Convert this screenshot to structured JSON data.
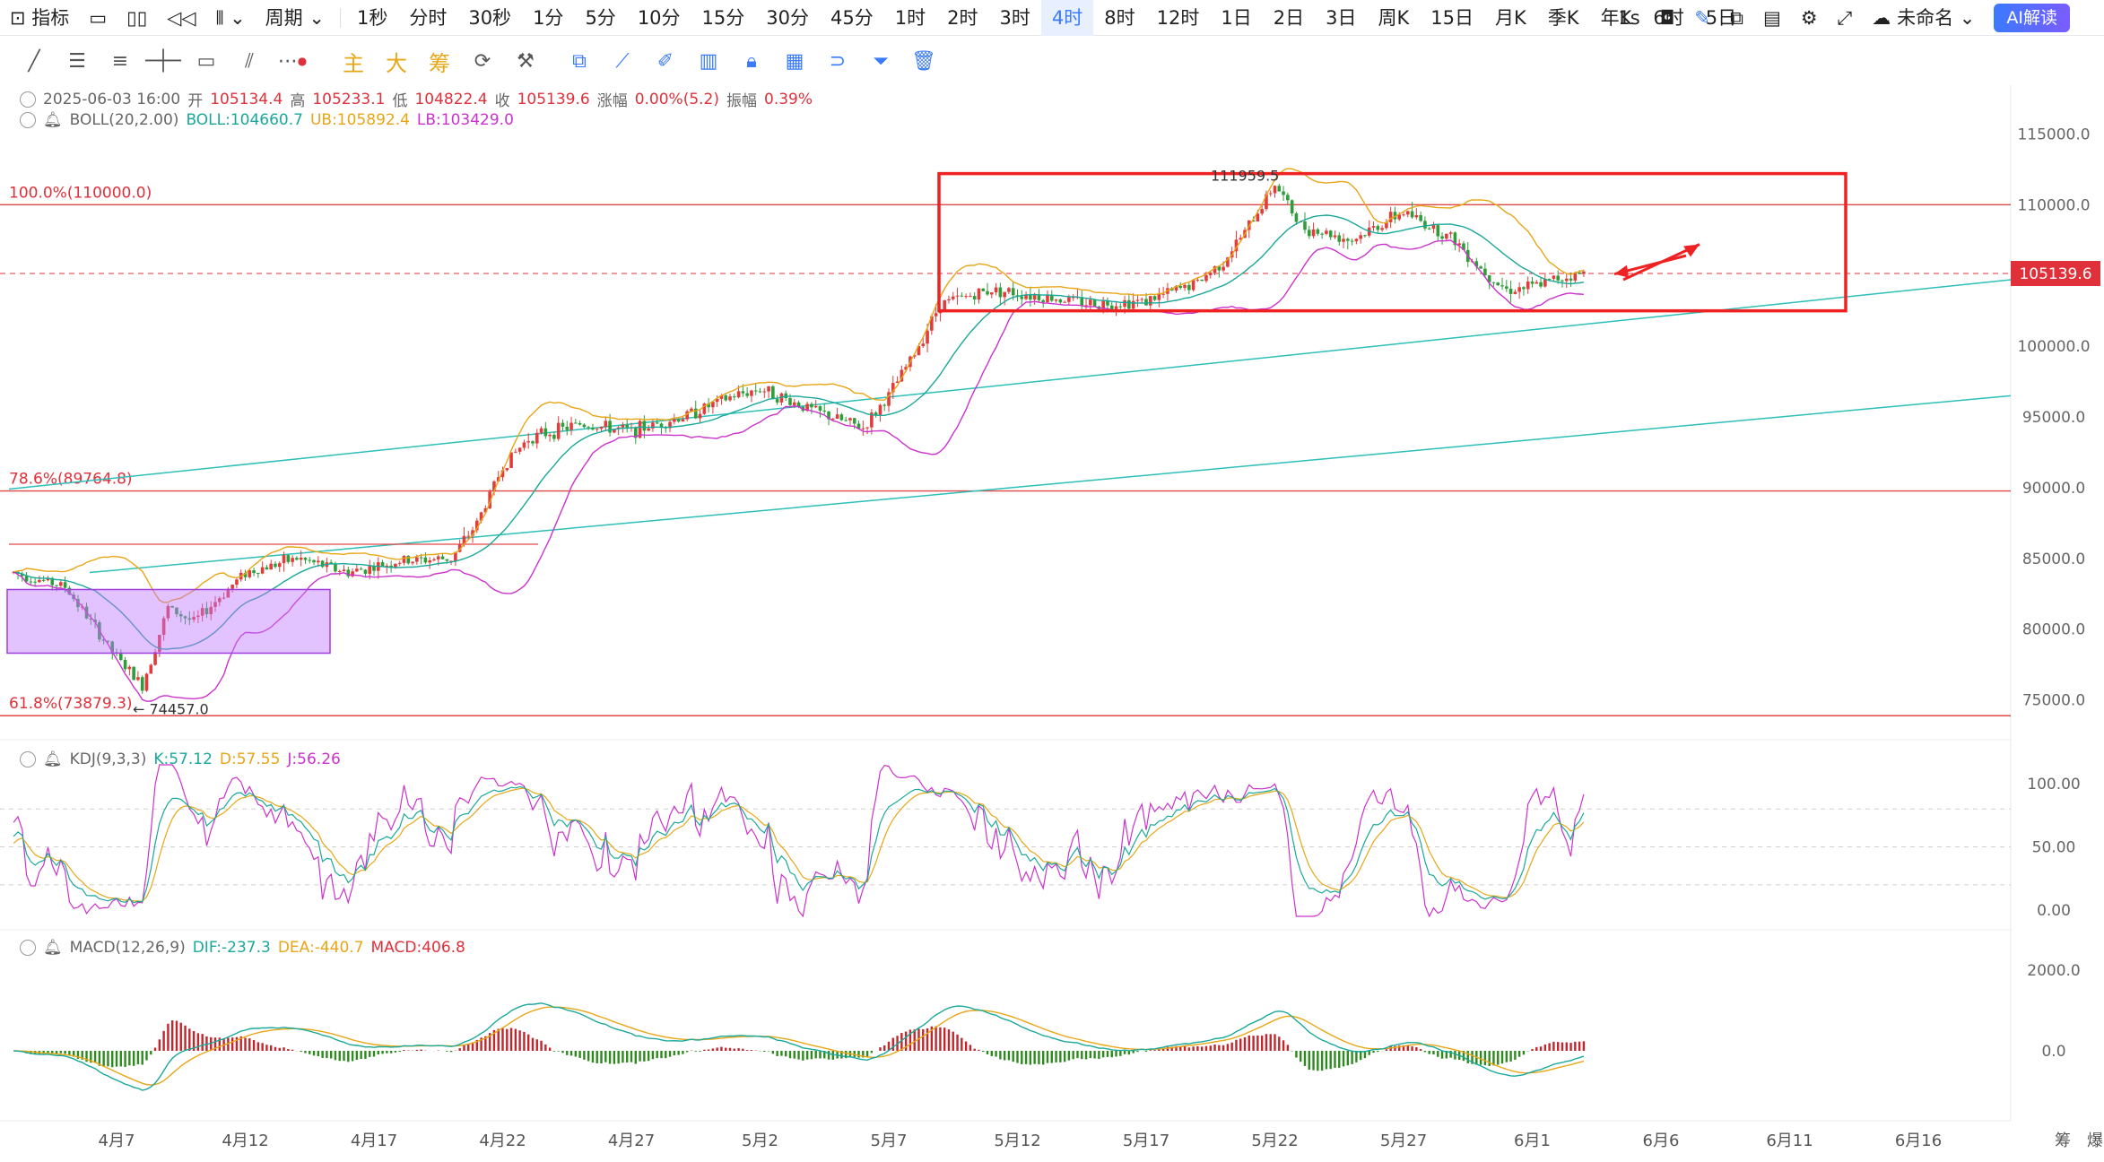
{
  "topbar": {
    "indicators_label": "指标",
    "period_label": "周期",
    "periods": [
      "1秒",
      "分时",
      "30秒",
      "1分",
      "5分",
      "10分",
      "15分",
      "30分",
      "45分",
      "1时",
      "2时",
      "3时",
      "4时",
      "8时",
      "12时",
      "1日",
      "2日",
      "3日",
      "周K",
      "15日",
      "月K",
      "季K",
      "年K",
      "6时",
      "5日"
    ],
    "active_period": "4时",
    "interval": "1s",
    "layout_name": "未命名",
    "ai_label": "AI解读"
  },
  "toolbar": {
    "labels": [
      "主",
      "大",
      "筹"
    ]
  },
  "ohlc": {
    "datetime": "2025-06-03 16:00",
    "open_label": "开",
    "open": "105134.4",
    "high_label": "高",
    "high": "105233.1",
    "low_label": "低",
    "low": "104822.4",
    "close_label": "收",
    "close": "105139.6",
    "change_label": "涨幅",
    "change": "0.00%(5.2)",
    "amp_label": "振幅",
    "amp": "0.39%"
  },
  "boll": {
    "name": "BOLL(20,2.00)",
    "mid": "BOLL:104660.7",
    "ub": "UB:105892.4",
    "lb": "LB:103429.0"
  },
  "kdj": {
    "name": "KDJ(9,3,3)",
    "k": "K:57.12",
    "d": "D:57.55",
    "j": "J:56.26"
  },
  "macd": {
    "name": "MACD(12,26,9)",
    "dif": "DIF:-237.3",
    "dea": "DEA:-440.7",
    "macd": "MACD:406.8"
  },
  "chart_data": {
    "type": "candlestick",
    "symbol_interval": "4时",
    "price_axis_ticks": [
      115000,
      110000,
      105000,
      100000,
      95000,
      90000,
      85000,
      80000,
      75000
    ],
    "price_axis_labels": [
      "115000.0",
      "110000.0",
      "105000.0",
      "100000.0",
      "95000.0",
      "90000.0",
      "85000.0",
      "80000.0",
      "75000.0"
    ],
    "ylim": [
      72500,
      117500
    ],
    "current_price": "105139.6",
    "high_marker": "111959.5",
    "low_marker": "74457.0",
    "fib_levels": [
      {
        "label": "100.0%(110000.0)",
        "value": 110000
      },
      {
        "label": "78.6%(89764.8)",
        "value": 89764.8
      },
      {
        "label": "61.8%(73879.3)",
        "value": 73879.3
      }
    ],
    "x_ticks": [
      "4月7",
      "4月12",
      "4月17",
      "4月22",
      "4月27",
      "5月2",
      "5月7",
      "5月12",
      "5月17",
      "5月22",
      "5月27",
      "6月1",
      "6月6",
      "6月11",
      "6月16"
    ],
    "price_path": [
      [
        "4月3",
        84000
      ],
      [
        "4月5",
        83000
      ],
      [
        "4月7",
        78000
      ],
      [
        "4月8",
        76000
      ],
      [
        "4月9",
        81500
      ],
      [
        "4月10",
        80500
      ],
      [
        "4月12",
        84000
      ],
      [
        "4月14",
        85000
      ],
      [
        "4月16",
        84000
      ],
      [
        "4月18",
        84800
      ],
      [
        "4月20",
        85000
      ],
      [
        "4月21",
        87500
      ],
      [
        "4月22",
        91500
      ],
      [
        "4月23",
        93500
      ],
      [
        "4月25",
        94500
      ],
      [
        "4月27",
        94000
      ],
      [
        "4月29",
        95000
      ],
      [
        "5月1",
        96500
      ],
      [
        "5月2",
        97000
      ],
      [
        "5月4",
        95500
      ],
      [
        "5月6",
        94200
      ],
      [
        "5月7",
        96500
      ],
      [
        "5月8",
        99500
      ],
      [
        "5月9",
        103000
      ],
      [
        "5月11",
        104000
      ],
      [
        "5月13",
        103500
      ],
      [
        "5月15",
        103000
      ],
      [
        "5月17",
        103200
      ],
      [
        "5月19",
        104500
      ],
      [
        "5月20",
        106000
      ],
      [
        "5月21",
        108500
      ],
      [
        "5月22",
        111500
      ],
      [
        "5月23",
        108500
      ],
      [
        "5月25",
        107500
      ],
      [
        "5月27",
        109500
      ],
      [
        "5月29",
        107500
      ],
      [
        "5月30",
        105500
      ],
      [
        "5月31",
        104000
      ],
      [
        "6月1",
        104200
      ],
      [
        "6月2",
        104800
      ],
      [
        "6月3",
        105139.6
      ]
    ],
    "kdj_axis_labels": [
      "100.00",
      "50.00",
      "0.00"
    ],
    "macd_axis_labels": [
      "2000.0",
      "0.0"
    ],
    "side_labels": [
      "筹",
      "爆"
    ]
  }
}
